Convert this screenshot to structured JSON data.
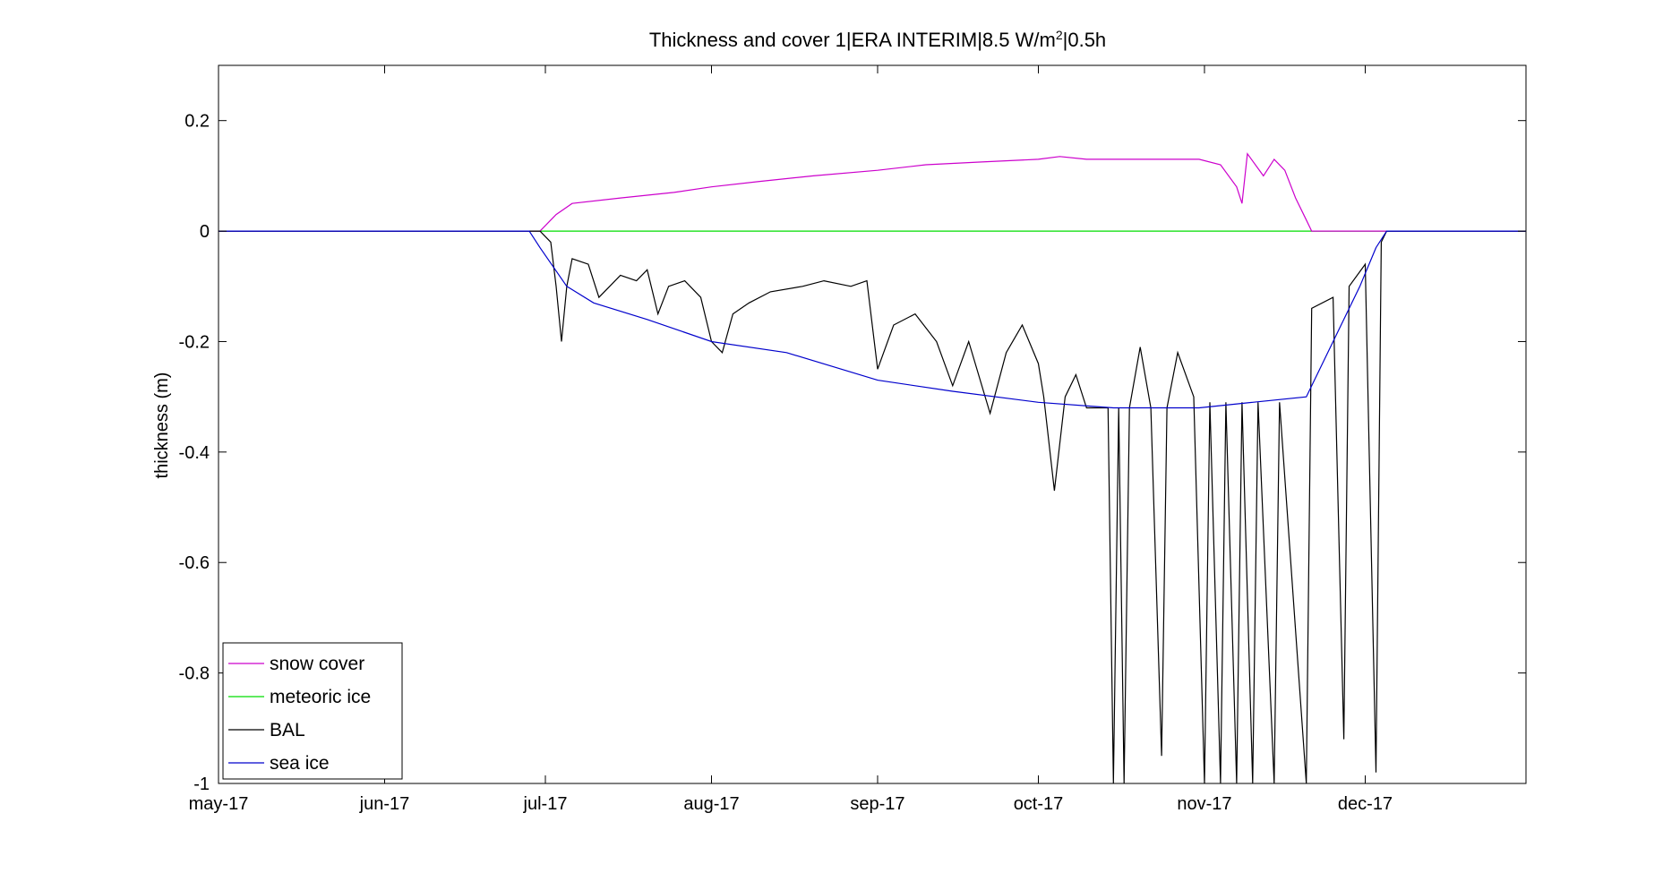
{
  "chart_data": {
    "type": "line",
    "title_main": "Thickness and cover 1|ERA INTERIM|8.5 W/m",
    "title_sup": "2",
    "title_end": "|0.5h",
    "xlabel": "",
    "ylabel": "thickness (m)",
    "xlim": [
      "2017-05-01",
      "2017-12-31"
    ],
    "ylim": [
      -1,
      0.3
    ],
    "x_ticks": [
      {
        "date": "2017-05-01",
        "label": "may-17"
      },
      {
        "date": "2017-06-01",
        "label": "jun-17"
      },
      {
        "date": "2017-07-01",
        "label": "jul-17"
      },
      {
        "date": "2017-08-01",
        "label": "aug-17"
      },
      {
        "date": "2017-09-01",
        "label": "sep-17"
      },
      {
        "date": "2017-10-01",
        "label": "oct-17"
      },
      {
        "date": "2017-11-01",
        "label": "nov-17"
      },
      {
        "date": "2017-12-01",
        "label": "dec-17"
      }
    ],
    "y_ticks": [
      {
        "value": 0.2,
        "label": "0.2"
      },
      {
        "value": 0,
        "label": "0"
      },
      {
        "value": -0.2,
        "label": "-0.2"
      },
      {
        "value": -0.4,
        "label": "-0.4"
      },
      {
        "value": -0.6,
        "label": "-0.6"
      },
      {
        "value": -0.8,
        "label": "-0.8"
      },
      {
        "value": -1,
        "label": "-1"
      }
    ],
    "grid": false,
    "legend_position": "bottom-left",
    "series": [
      {
        "name": "snow cover",
        "color": "#cc00cc",
        "points": [
          [
            "2017-05-01",
            0
          ],
          [
            "2017-06-30",
            0
          ],
          [
            "2017-07-01",
            0.01
          ],
          [
            "2017-07-03",
            0.03
          ],
          [
            "2017-07-06",
            0.05
          ],
          [
            "2017-07-15",
            0.06
          ],
          [
            "2017-07-25",
            0.07
          ],
          [
            "2017-08-01",
            0.08
          ],
          [
            "2017-08-10",
            0.09
          ],
          [
            "2017-08-20",
            0.1
          ],
          [
            "2017-09-01",
            0.11
          ],
          [
            "2017-09-10",
            0.12
          ],
          [
            "2017-09-20",
            0.125
          ],
          [
            "2017-10-01",
            0.13
          ],
          [
            "2017-10-05",
            0.135
          ],
          [
            "2017-10-10",
            0.13
          ],
          [
            "2017-10-20",
            0.13
          ],
          [
            "2017-10-25",
            0.13
          ],
          [
            "2017-10-31",
            0.13
          ],
          [
            "2017-11-04",
            0.12
          ],
          [
            "2017-11-07",
            0.08
          ],
          [
            "2017-11-08",
            0.05
          ],
          [
            "2017-11-09",
            0.14
          ],
          [
            "2017-11-12",
            0.1
          ],
          [
            "2017-11-14",
            0.13
          ],
          [
            "2017-11-16",
            0.11
          ],
          [
            "2017-11-18",
            0.06
          ],
          [
            "2017-11-20",
            0.02
          ],
          [
            "2017-11-21",
            0
          ],
          [
            "2017-12-31",
            0
          ]
        ]
      },
      {
        "name": "meteoric ice",
        "color": "#00dd00",
        "points": [
          [
            "2017-05-01",
            0
          ],
          [
            "2017-12-31",
            0
          ]
        ]
      },
      {
        "name": "BAL",
        "color": "#000000",
        "points": [
          [
            "2017-05-01",
            0
          ],
          [
            "2017-06-30",
            0
          ],
          [
            "2017-07-02",
            -0.02
          ],
          [
            "2017-07-03",
            -0.1
          ],
          [
            "2017-07-04",
            -0.2
          ],
          [
            "2017-07-05",
            -0.1
          ],
          [
            "2017-07-06",
            -0.05
          ],
          [
            "2017-07-09",
            -0.06
          ],
          [
            "2017-07-11",
            -0.12
          ],
          [
            "2017-07-13",
            -0.1
          ],
          [
            "2017-07-15",
            -0.08
          ],
          [
            "2017-07-18",
            -0.09
          ],
          [
            "2017-07-20",
            -0.07
          ],
          [
            "2017-07-22",
            -0.15
          ],
          [
            "2017-07-24",
            -0.1
          ],
          [
            "2017-07-27",
            -0.09
          ],
          [
            "2017-07-30",
            -0.12
          ],
          [
            "2017-08-01",
            -0.2
          ],
          [
            "2017-08-03",
            -0.22
          ],
          [
            "2017-08-05",
            -0.15
          ],
          [
            "2017-08-08",
            -0.13
          ],
          [
            "2017-08-12",
            -0.11
          ],
          [
            "2017-08-18",
            -0.1
          ],
          [
            "2017-08-22",
            -0.09
          ],
          [
            "2017-08-27",
            -0.1
          ],
          [
            "2017-08-30",
            -0.09
          ],
          [
            "2017-09-01",
            -0.25
          ],
          [
            "2017-09-04",
            -0.17
          ],
          [
            "2017-09-08",
            -0.15
          ],
          [
            "2017-09-12",
            -0.2
          ],
          [
            "2017-09-15",
            -0.28
          ],
          [
            "2017-09-18",
            -0.2
          ],
          [
            "2017-09-22",
            -0.33
          ],
          [
            "2017-09-25",
            -0.22
          ],
          [
            "2017-09-28",
            -0.17
          ],
          [
            "2017-10-01",
            -0.24
          ],
          [
            "2017-10-02",
            -0.3
          ],
          [
            "2017-10-04",
            -0.47
          ],
          [
            "2017-10-06",
            -0.3
          ],
          [
            "2017-10-08",
            -0.26
          ],
          [
            "2017-10-10",
            -0.32
          ],
          [
            "2017-10-14",
            -0.32
          ],
          [
            "2017-10-15",
            -1
          ],
          [
            "2017-10-16",
            -0.32
          ],
          [
            "2017-10-17",
            -1
          ],
          [
            "2017-10-18",
            -0.32
          ],
          [
            "2017-10-20",
            -0.21
          ],
          [
            "2017-10-22",
            -0.32
          ],
          [
            "2017-10-24",
            -0.95
          ],
          [
            "2017-10-25",
            -0.32
          ],
          [
            "2017-10-27",
            -0.22
          ],
          [
            "2017-10-30",
            -0.3
          ],
          [
            "2017-11-01",
            -1
          ],
          [
            "2017-11-02",
            -0.31
          ],
          [
            "2017-11-04",
            -1
          ],
          [
            "2017-11-05",
            -0.31
          ],
          [
            "2017-11-07",
            -1
          ],
          [
            "2017-11-08",
            -0.31
          ],
          [
            "2017-11-10",
            -1
          ],
          [
            "2017-11-11",
            -0.31
          ],
          [
            "2017-11-14",
            -1
          ],
          [
            "2017-11-15",
            -0.31
          ],
          [
            "2017-11-20",
            -1
          ],
          [
            "2017-11-21",
            -0.14
          ],
          [
            "2017-11-25",
            -0.12
          ],
          [
            "2017-11-27",
            -0.92
          ],
          [
            "2017-11-28",
            -0.1
          ],
          [
            "2017-12-01",
            -0.06
          ],
          [
            "2017-12-03",
            -0.98
          ],
          [
            "2017-12-04",
            -0.02
          ],
          [
            "2017-12-05",
            0
          ],
          [
            "2017-12-31",
            0
          ]
        ]
      },
      {
        "name": "sea ice",
        "color": "#0000cc",
        "points": [
          [
            "2017-05-01",
            0
          ],
          [
            "2017-06-28",
            0
          ],
          [
            "2017-06-30",
            -0.03
          ],
          [
            "2017-07-05",
            -0.1
          ],
          [
            "2017-07-10",
            -0.13
          ],
          [
            "2017-07-20",
            -0.16
          ],
          [
            "2017-08-01",
            -0.2
          ],
          [
            "2017-08-15",
            -0.22
          ],
          [
            "2017-09-01",
            -0.27
          ],
          [
            "2017-09-15",
            -0.29
          ],
          [
            "2017-10-01",
            -0.31
          ],
          [
            "2017-10-15",
            -0.32
          ],
          [
            "2017-10-31",
            -0.32
          ],
          [
            "2017-11-10",
            -0.31
          ],
          [
            "2017-11-20",
            -0.3
          ],
          [
            "2017-11-25",
            -0.2
          ],
          [
            "2017-11-30",
            -0.1
          ],
          [
            "2017-12-03",
            -0.03
          ],
          [
            "2017-12-05",
            0
          ],
          [
            "2017-12-31",
            0
          ]
        ]
      }
    ]
  }
}
